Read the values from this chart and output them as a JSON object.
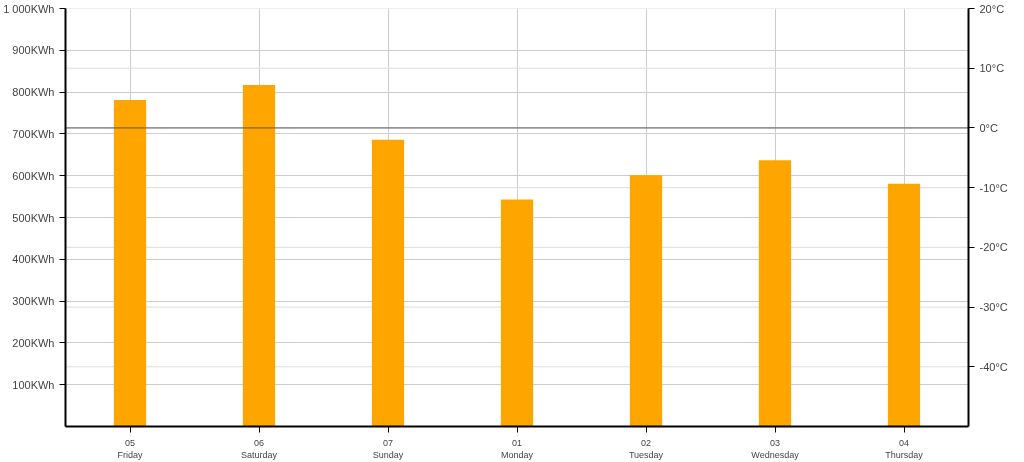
{
  "chart_data": {
    "type": "bar",
    "categories": [
      "05\nFriday",
      "06\nSaturday",
      "07\nSunday",
      "01\nMonday",
      "02\nTuesday",
      "03\nWednesday",
      "04\nThursday"
    ],
    "series": [
      {
        "color": "#ffa500",
        "values": [
          781,
          817,
          686,
          543,
          601,
          637,
          581
        ]
      }
    ],
    "ylim": [
      0,
      1000
    ],
    "yticks": [
      {
        "value": 100,
        "label": "100KWh"
      },
      {
        "value": 200,
        "label": "200KWh"
      },
      {
        "value": 300,
        "label": "300KWh"
      },
      {
        "value": 400,
        "label": "400KWh"
      },
      {
        "value": 500,
        "label": "500KWh"
      },
      {
        "value": 600,
        "label": "600KWh"
      },
      {
        "value": 700,
        "label": "700KWh"
      },
      {
        "value": 800,
        "label": "800KWh"
      },
      {
        "value": 900,
        "label": "900KWh"
      },
      {
        "value": 1000,
        "label": "1 000KWh"
      }
    ],
    "y2lim": [
      -50,
      20
    ],
    "y2ticks": [
      {
        "value": -40,
        "label": "-40°C"
      },
      {
        "value": -30,
        "label": "-30°C"
      },
      {
        "value": -20,
        "label": "-20°C"
      },
      {
        "value": -10,
        "label": "-10°C"
      },
      {
        "value": 0,
        "label": "0°C"
      },
      {
        "value": 10,
        "label": "10°C"
      },
      {
        "value": 20,
        "label": "20°C"
      }
    ],
    "ref_lines": [
      {
        "axis": "y2",
        "value": 0,
        "color": "#555555"
      }
    ],
    "grid": true
  }
}
